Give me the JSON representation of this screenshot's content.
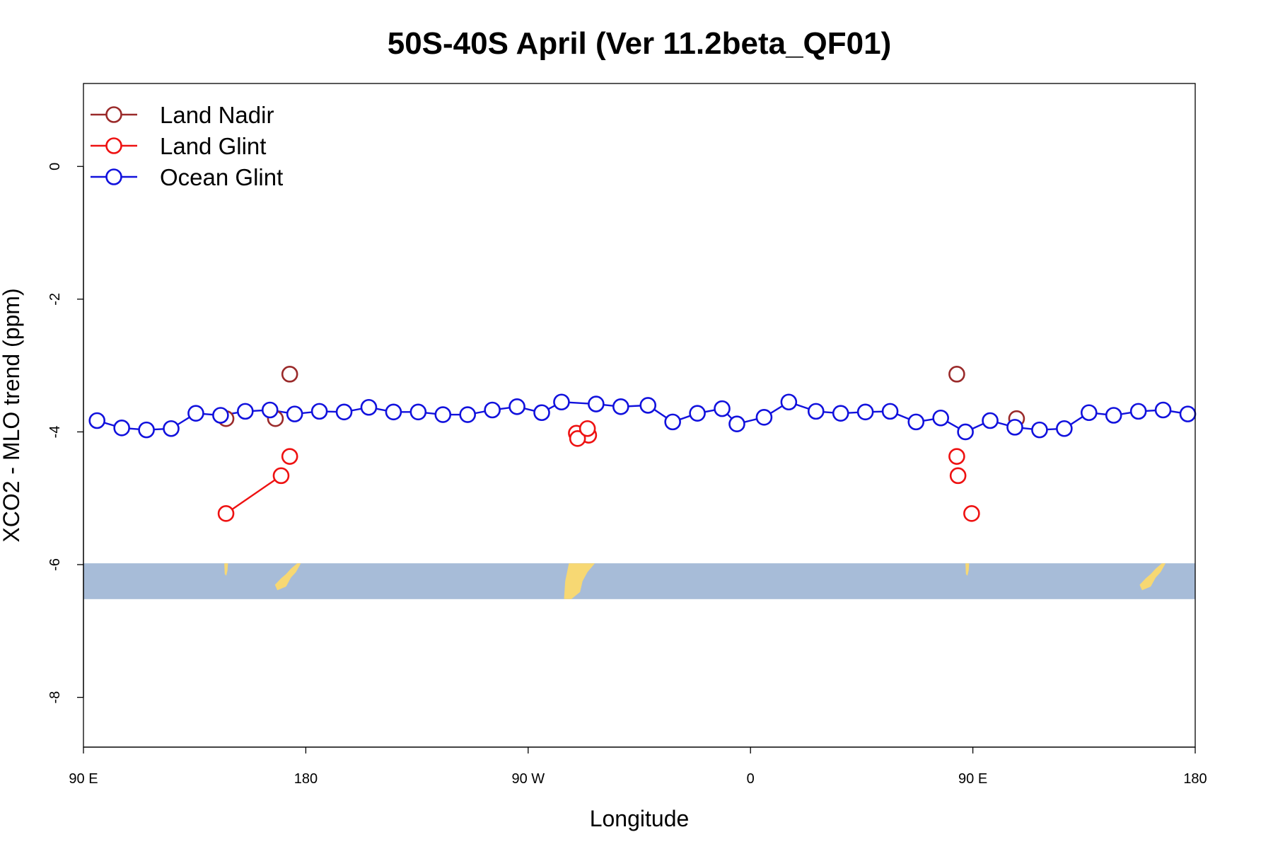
{
  "chart_data": {
    "type": "line",
    "title": "50S-40S April (Ver 11.2beta_QF01)",
    "xlabel": "Longitude",
    "ylabel": "XCO2 - MLO trend (ppm)",
    "xlim": [
      90,
      540
    ],
    "ylim": [
      -8.75,
      1.25
    ],
    "x_ticks": [
      {
        "value": 90,
        "label": "90 E"
      },
      {
        "value": 180,
        "label": "180"
      },
      {
        "value": 270,
        "label": "90 W"
      },
      {
        "value": 360,
        "label": "0"
      },
      {
        "value": 450,
        "label": "90 E"
      },
      {
        "value": 540,
        "label": "180"
      }
    ],
    "y_ticks": [
      {
        "value": 0,
        "label": "0"
      },
      {
        "value": -2,
        "label": "-2"
      },
      {
        "value": -4,
        "label": "-4"
      },
      {
        "value": -6,
        "label": "-6"
      },
      {
        "value": -8,
        "label": "-8"
      }
    ],
    "legend": {
      "position": "top-left",
      "entries": [
        {
          "name": "Land Nadir",
          "color": "#9a2a2a"
        },
        {
          "name": "Land Glint",
          "color": "#ee1111"
        },
        {
          "name": "Ocean Glint",
          "color": "#1111dd"
        }
      ]
    },
    "map_strip": {
      "y_top": -5.98,
      "y_bottom": -6.52,
      "ocean_color": "#a7bcd8",
      "land_color": "#f7d873"
    },
    "series": [
      {
        "name": "Land Nadir",
        "color": "#9a2a2a",
        "points": [
          [
            147.7,
            -3.8
          ],
          [
            173.5,
            -3.13
          ],
          [
            167.7,
            -3.8
          ],
          [
            467.7,
            -3.8
          ],
          [
            443.5,
            -3.13
          ]
        ],
        "segments": []
      },
      {
        "name": "Land Glint",
        "color": "#ee1111",
        "points": [
          [
            147.7,
            -5.23
          ],
          [
            170,
            -4.66
          ],
          [
            173.5,
            -4.37
          ],
          [
            289.5,
            -4.02
          ],
          [
            294.5,
            -4.05
          ],
          [
            290,
            -4.1
          ],
          [
            294,
            -3.95
          ],
          [
            449.5,
            -5.23
          ],
          [
            444,
            -4.66
          ],
          [
            443.5,
            -4.37
          ]
        ],
        "segments": [
          [
            0,
            1
          ]
        ]
      },
      {
        "name": "Ocean Glint",
        "color": "#1111dd",
        "points": [
          [
            95.5,
            -3.83
          ],
          [
            105.5,
            -3.94
          ],
          [
            115.5,
            -3.97
          ],
          [
            125.5,
            -3.95
          ],
          [
            135.5,
            -3.72
          ],
          [
            145.5,
            -3.75
          ],
          [
            155.5,
            -3.69
          ],
          [
            165.5,
            -3.67
          ],
          [
            175.5,
            -3.73
          ],
          [
            185.5,
            -3.69
          ],
          [
            195.5,
            -3.7
          ],
          [
            205.5,
            -3.63
          ],
          [
            215.5,
            -3.7
          ],
          [
            225.5,
            -3.7
          ],
          [
            235.5,
            -3.74
          ],
          [
            245.5,
            -3.74
          ],
          [
            255.5,
            -3.67
          ],
          [
            265.5,
            -3.62
          ],
          [
            275.5,
            -3.71
          ],
          [
            283.5,
            -3.55
          ],
          [
            297.5,
            -3.58
          ],
          [
            307.5,
            -3.62
          ],
          [
            318.5,
            -3.6
          ],
          [
            328.5,
            -3.85
          ],
          [
            338.5,
            -3.72
          ],
          [
            348.5,
            -3.65
          ],
          [
            354.5,
            -3.88
          ],
          [
            365.5,
            -3.78
          ],
          [
            375.5,
            -3.55
          ],
          [
            386.5,
            -3.69
          ],
          [
            396.5,
            -3.72
          ],
          [
            406.5,
            -3.7
          ],
          [
            416.5,
            -3.69
          ],
          [
            427,
            -3.85
          ],
          [
            437,
            -3.79
          ],
          [
            447,
            -4.0
          ],
          [
            457,
            -3.83
          ],
          [
            467,
            -3.93
          ],
          [
            477,
            -3.97
          ],
          [
            487,
            -3.95
          ],
          [
            497,
            -3.71
          ],
          [
            507,
            -3.75
          ],
          [
            517,
            -3.69
          ],
          [
            527,
            -3.67
          ],
          [
            537,
            -3.73
          ]
        ],
        "segments": "all"
      }
    ]
  }
}
